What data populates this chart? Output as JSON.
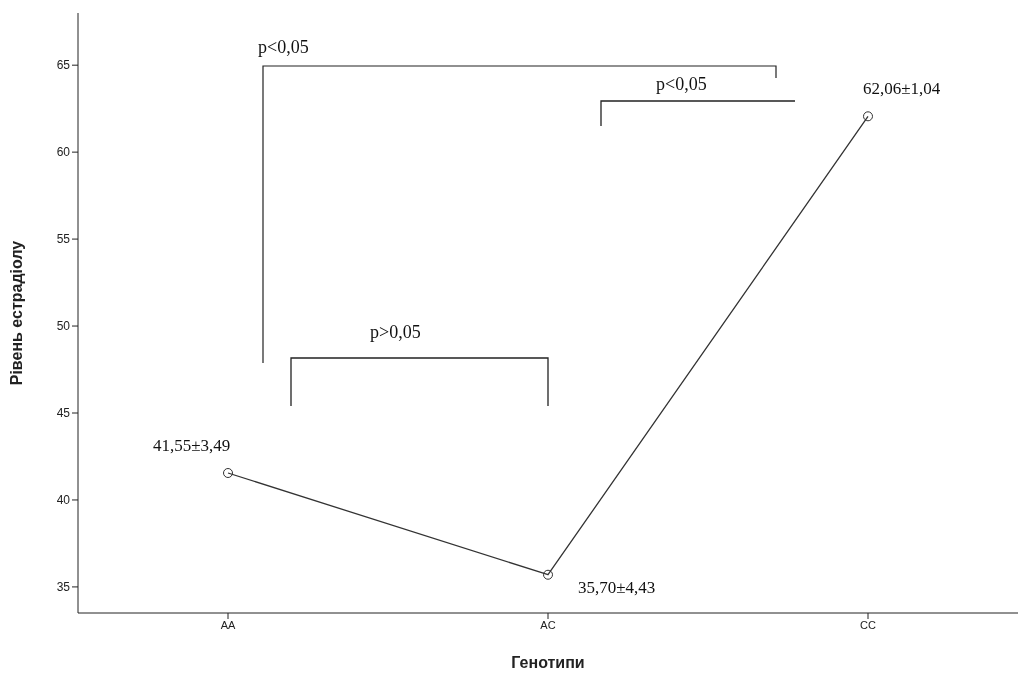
{
  "chart_data": {
    "type": "line",
    "xlabel": "Генотипи",
    "ylabel": "Рівень естрадіолу",
    "categories": [
      "AA",
      "AC",
      "CC"
    ],
    "series": [
      {
        "color": "#333333",
        "values": [
          41.55,
          35.7,
          62.06
        ],
        "value_labels": [
          "41,55±3,49",
          "35,70±4,43",
          "62,06±1,04"
        ]
      }
    ],
    "ylim": [
      33.5,
      68
    ],
    "yticks": [
      35,
      40,
      45,
      50,
      55,
      60,
      65
    ],
    "marker": "circle",
    "line_style": "solid",
    "annotations": [
      "p<0,05",
      "p<0,05",
      "p>0,05"
    ]
  }
}
